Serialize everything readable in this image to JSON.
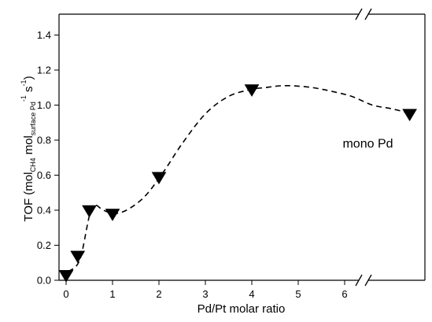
{
  "chart_data": {
    "type": "scatter",
    "xlabel": "Pd/Pt molar ratio",
    "ylabel": {
      "prefix": "TOF (mol",
      "sub1": "CH4",
      "mid": " mol",
      "sub2": "surface Pd",
      "sup1": "-1",
      "mid2": " s",
      "sup2": "-1",
      "suffix": ")"
    },
    "xlim": [
      -0.2,
      6.8
    ],
    "ylim": [
      0,
      1.5
    ],
    "x_ticks": [
      0,
      1,
      2,
      3,
      4,
      5,
      6
    ],
    "y_ticks": [
      0.0,
      0.2,
      0.4,
      0.6,
      0.8,
      1.0,
      1.2,
      1.4
    ],
    "axis_break": "x between 6 and mono Pd",
    "grid": false,
    "series": [
      {
        "marker": "inverted-triangle",
        "x": [
          0,
          0.25,
          0.5,
          1,
          2,
          4,
          7.4
        ],
        "y": [
          0.03,
          0.14,
          0.4,
          0.38,
          0.59,
          1.09,
          0.95
        ]
      }
    ],
    "fit_curve": {
      "style": "dashed",
      "x": [
        0.05,
        0.3,
        0.55,
        0.8,
        1.0,
        1.3,
        1.7,
        2.1,
        2.5,
        3.0,
        3.5,
        4.0,
        4.3,
        4.6,
        4.9,
        5.3,
        5.7,
        6.15,
        6.6,
        7.0,
        7.45
      ],
      "y": [
        0.05,
        0.12,
        0.41,
        0.4,
        0.38,
        0.4,
        0.48,
        0.62,
        0.78,
        0.95,
        1.05,
        1.09,
        1.1,
        1.11,
        1.11,
        1.1,
        1.08,
        1.05,
        1.0,
        0.98,
        0.95
      ]
    },
    "annotations": [
      {
        "text": "mono Pd",
        "x": 6.5,
        "y": 0.78
      }
    ]
  }
}
